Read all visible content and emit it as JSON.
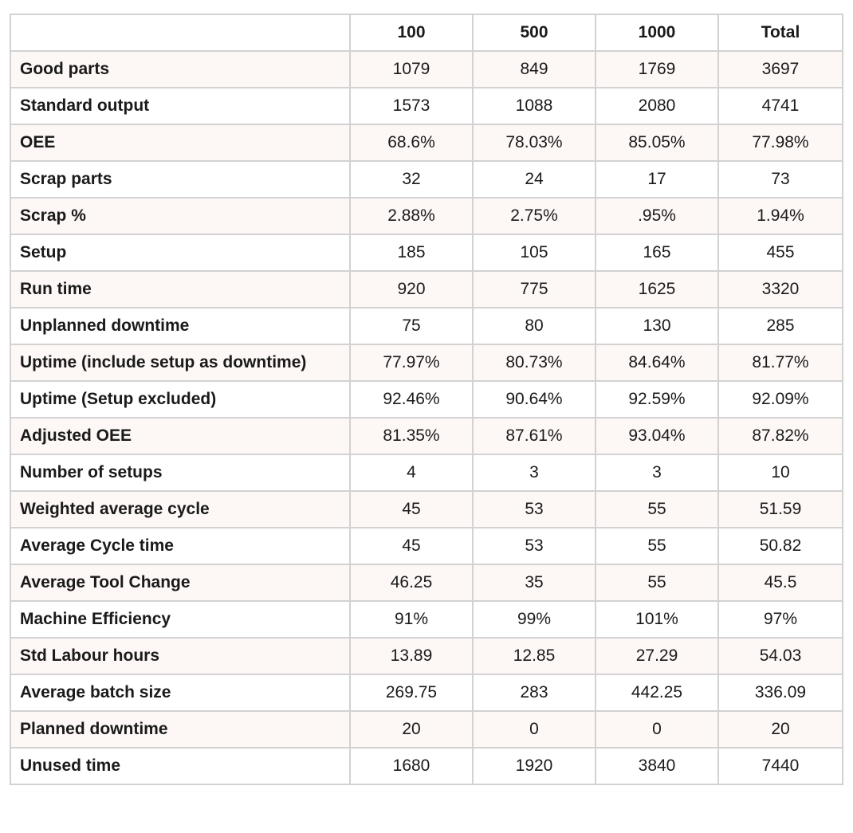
{
  "table": {
    "columns": [
      "",
      "100",
      "500",
      "1000",
      "Total"
    ],
    "rows": [
      {
        "label": "Good parts",
        "values": [
          "1079",
          "849",
          "1769",
          "3697"
        ]
      },
      {
        "label": "Standard output",
        "values": [
          "1573",
          "1088",
          "2080",
          "4741"
        ]
      },
      {
        "label": "OEE",
        "values": [
          "68.6%",
          "78.03%",
          "85.05%",
          "77.98%"
        ]
      },
      {
        "label": "Scrap parts",
        "values": [
          "32",
          "24",
          "17",
          "73"
        ]
      },
      {
        "label": "Scrap %",
        "values": [
          "2.88%",
          "2.75%",
          ".95%",
          "1.94%"
        ]
      },
      {
        "label": "Setup",
        "values": [
          "185",
          "105",
          "165",
          "455"
        ]
      },
      {
        "label": "Run time",
        "values": [
          "920",
          "775",
          "1625",
          "3320"
        ]
      },
      {
        "label": "Unplanned downtime",
        "values": [
          "75",
          "80",
          "130",
          "285"
        ]
      },
      {
        "label": "Uptime (include setup as downtime)",
        "values": [
          "77.97%",
          "80.73%",
          "84.64%",
          "81.77%"
        ]
      },
      {
        "label": "Uptime (Setup excluded)",
        "values": [
          "92.46%",
          "90.64%",
          "92.59%",
          "92.09%"
        ]
      },
      {
        "label": "Adjusted OEE",
        "values": [
          "81.35%",
          "87.61%",
          "93.04%",
          "87.82%"
        ]
      },
      {
        "label": "Number of setups",
        "values": [
          "4",
          "3",
          "3",
          "10"
        ]
      },
      {
        "label": "Weighted average cycle",
        "values": [
          "45",
          "53",
          "55",
          "51.59"
        ]
      },
      {
        "label": "Average Cycle time",
        "values": [
          "45",
          "53",
          "55",
          "50.82"
        ]
      },
      {
        "label": "Average Tool Change",
        "values": [
          "46.25",
          "35",
          "55",
          "45.5"
        ]
      },
      {
        "label": "Machine Efficiency",
        "values": [
          "91%",
          "99%",
          "101%",
          "97%"
        ]
      },
      {
        "label": "Std Labour hours",
        "values": [
          "13.89",
          "12.85",
          "27.29",
          "54.03"
        ]
      },
      {
        "label": "Average batch size",
        "values": [
          "269.75",
          "283",
          "442.25",
          "336.09"
        ]
      },
      {
        "label": "Planned downtime",
        "values": [
          "20",
          "0",
          "0",
          "20"
        ]
      },
      {
        "label": "Unused time",
        "values": [
          "1680",
          "1920",
          "3840",
          "7440"
        ]
      }
    ]
  },
  "colors": {
    "border": "#d2d2d2",
    "row_stripe": "#fdf7f6",
    "text": "#1a1a1a"
  }
}
